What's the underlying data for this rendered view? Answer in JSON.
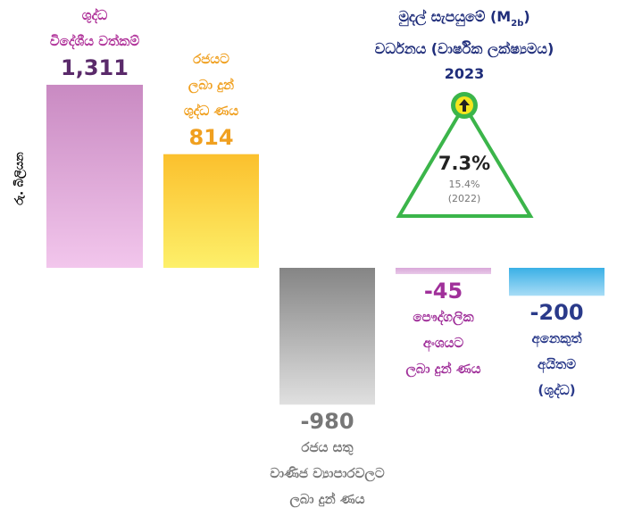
{
  "chart_data": {
    "type": "bar",
    "y_label": "රු. බිලියන",
    "categories": [
      "ශුද්ධ\nවිදේශීය වත්කම්",
      "රජයට\nලබා දුන්\nශුද්ධ ණය",
      "රජය සතු\nවාණිජ ව්‍යාපාරවලට\nලබා දුන් ණය",
      "පෞද්ගලික\nඅංශයට\nලබා දුන් ණය",
      "අනෙකුත්\nඅයිතම\n(ශුද්ධ)"
    ],
    "values": [
      1311,
      814,
      -980,
      -45,
      -200
    ],
    "value_labels": [
      "1,311",
      "814",
      "-980",
      "-45",
      "-200"
    ],
    "colors": [
      "#d9a0d3",
      "#fcd535",
      "#b0b0b0",
      "#d9a8d9",
      "#4ab8e8"
    ],
    "annotation": {
      "title": [
        "මුදල් සැපයුමේ (M",
        "2b",
        ")"
      ],
      "title_line2": "වර්ධනය (වාර්ෂික ලක්ෂ්‍යමය)",
      "year": "2023",
      "value": "7.3%",
      "previous": "15.4%",
      "previous_year": "(2022)"
    }
  }
}
